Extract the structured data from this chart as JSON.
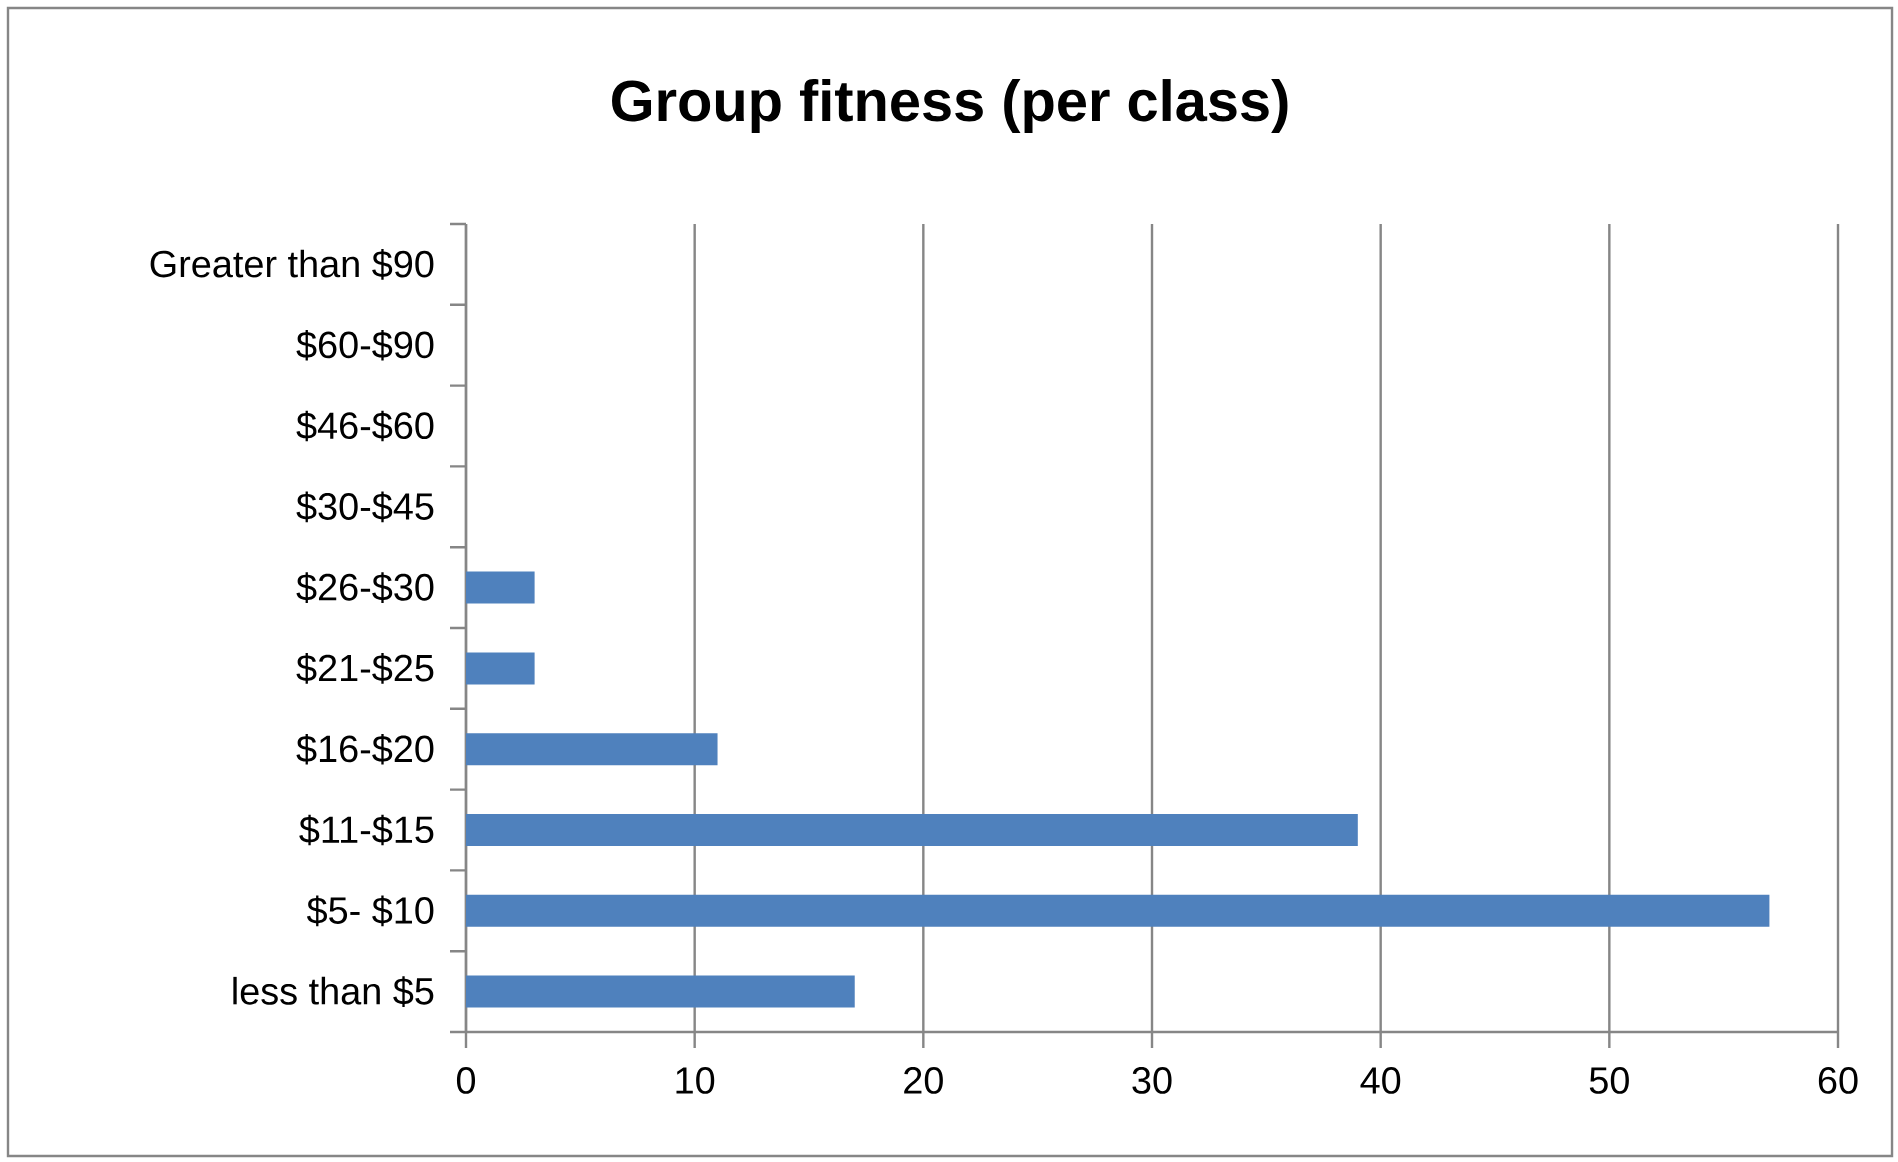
{
  "chart_data": {
    "type": "bar",
    "orientation": "horizontal",
    "title": "Group fitness (per class)",
    "categories": [
      "Greater than $90",
      "$60-$90",
      "$46-$60",
      "$30-$45",
      "$26-$30",
      "$21-$25",
      "$16-$20",
      "$11-$15",
      "$5- $10",
      "less than $5"
    ],
    "values": [
      0,
      0,
      0,
      0,
      3,
      3,
      11,
      39,
      57,
      17
    ],
    "color": "#4f81bd",
    "xlim": [
      0,
      60
    ],
    "xticks": [
      0,
      10,
      20,
      30,
      40,
      50,
      60
    ],
    "grid": "x"
  }
}
